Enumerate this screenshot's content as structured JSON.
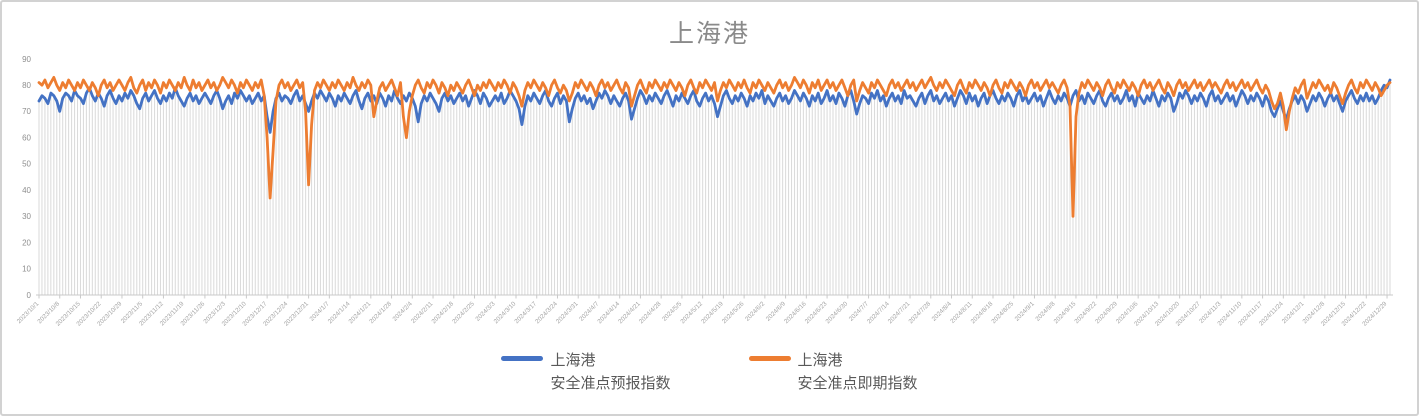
{
  "panel": {
    "title": "上海港"
  },
  "appearance": {
    "series_forecast_color": "#4472C4",
    "series_spot_color": "#ED7D31",
    "drop_line_color": "#dbdbdb",
    "axis_color": "#c9c9c9",
    "y_label_color": "#8e8e8e",
    "x_label_color": "#a6a6a6",
    "title_color": "#8a8a8a"
  },
  "legend": {
    "items": [
      {
        "line1": "上海港",
        "line2": "安全准点预报指数",
        "color": "#4472C4"
      },
      {
        "line1": "上海港",
        "line2": "安全准点即期指数",
        "color": "#ED7D31"
      }
    ]
  },
  "chart_data": {
    "type": "line",
    "title": "上海港",
    "xlabel": "",
    "ylabel": "",
    "ylim": [
      0,
      90
    ],
    "y_ticks": [
      0,
      10,
      20,
      30,
      40,
      50,
      60,
      70,
      80,
      90
    ],
    "grid": false,
    "drop_lines": true,
    "legend_position": "bottom",
    "x_start": "2023/10/1",
    "x_end": "2024/12/30",
    "x_frequency": "daily",
    "x_tick_every_days": 7,
    "x_tick_labels": [
      "2023/10/1",
      "2023/10/8",
      "2023/10/15",
      "2023/10/22",
      "2023/10/29",
      "2023/11/5",
      "2023/11/12",
      "2023/11/19",
      "2023/11/26",
      "2023/12/3",
      "2023/12/10",
      "2023/12/17",
      "2023/12/24",
      "2023/12/31",
      "2024/1/7",
      "2024/1/14",
      "2024/1/21",
      "2024/1/28",
      "2024/2/4",
      "2024/2/11",
      "2024/2/18",
      "2024/2/25",
      "2024/3/3",
      "2024/3/10",
      "2024/3/17",
      "2024/3/24",
      "2024/3/31",
      "2024/4/7",
      "2024/4/14",
      "2024/4/21",
      "2024/4/28",
      "2024/5/5",
      "2024/5/12",
      "2024/5/19",
      "2024/5/26",
      "2024/6/2",
      "2024/6/9",
      "2024/6/16",
      "2024/6/23",
      "2024/6/30",
      "2024/7/7",
      "2024/7/14",
      "2024/7/21",
      "2024/7/28",
      "2024/8/4",
      "2024/8/11",
      "2024/8/18",
      "2024/8/25",
      "2024/9/1",
      "2024/9/8",
      "2024/9/15",
      "2024/9/22",
      "2024/9/29",
      "2024/10/6",
      "2024/10/13",
      "2024/10/20",
      "2024/10/27",
      "2024/11/3",
      "2024/11/10",
      "2024/11/17",
      "2024/11/24",
      "2024/12/1",
      "2024/12/8",
      "2024/12/15",
      "2024/12/22",
      "2024/12/29"
    ],
    "series": [
      {
        "name": "上海港 安全准点预报指数",
        "color": "#4472C4",
        "values": [
          74,
          76,
          75,
          73,
          77,
          76,
          74,
          70,
          75,
          77,
          76,
          74,
          78,
          76,
          75,
          73,
          77,
          79,
          76,
          74,
          77,
          75,
          72,
          76,
          78,
          75,
          73,
          76,
          74,
          77,
          75,
          78,
          76,
          73,
          71,
          75,
          77,
          74,
          76,
          78,
          75,
          73,
          76,
          74,
          77,
          75,
          79,
          76,
          74,
          72,
          75,
          77,
          74,
          76,
          73,
          75,
          77,
          75,
          73,
          76,
          78,
          75,
          71,
          74,
          76,
          73,
          77,
          75,
          78,
          76,
          74,
          76,
          73,
          75,
          77,
          74,
          76,
          68,
          62,
          70,
          75,
          77,
          74,
          76,
          75,
          73,
          76,
          78,
          74,
          76,
          73,
          70,
          74,
          77,
          75,
          78,
          76,
          74,
          77,
          75,
          72,
          76,
          74,
          77,
          75,
          73,
          76,
          78,
          74,
          71,
          75,
          77,
          74,
          76,
          73,
          77,
          75,
          72,
          76,
          74,
          78,
          75,
          73,
          76,
          74,
          77,
          75,
          72,
          66,
          73,
          76,
          74,
          77,
          75,
          73,
          70,
          75,
          77,
          74,
          76,
          73,
          75,
          77,
          74,
          76,
          72,
          75,
          78,
          76,
          73,
          77,
          75,
          72,
          74,
          76,
          74,
          77,
          73,
          75,
          78,
          76,
          74,
          71,
          65,
          72,
          76,
          74,
          77,
          75,
          73,
          76,
          78,
          74,
          72,
          75,
          77,
          73,
          76,
          74,
          66,
          71,
          75,
          77,
          74,
          76,
          73,
          75,
          71,
          74,
          77,
          75,
          78,
          76,
          73,
          76,
          74,
          72,
          75,
          77,
          74,
          67,
          71,
          75,
          78,
          76,
          73,
          76,
          74,
          77,
          75,
          73,
          76,
          78,
          75,
          72,
          76,
          74,
          77,
          75,
          73,
          76,
          78,
          74,
          72,
          75,
          77,
          74,
          76,
          73,
          68,
          72,
          76,
          78,
          75,
          73,
          76,
          74,
          77,
          75,
          72,
          76,
          74,
          77,
          75,
          78,
          73,
          76,
          74,
          72,
          75,
          77,
          74,
          76,
          73,
          75,
          78,
          76,
          74,
          77,
          75,
          72,
          76,
          74,
          77,
          73,
          75,
          78,
          74,
          76,
          73,
          77,
          75,
          72,
          76,
          78,
          74,
          69,
          73,
          76,
          75,
          73,
          77,
          75,
          78,
          74,
          76,
          72,
          75,
          77,
          74,
          76,
          73,
          78,
          75,
          76,
          74,
          72,
          75,
          77,
          73,
          76,
          78,
          74,
          76,
          73,
          75,
          77,
          74,
          76,
          72,
          75,
          78,
          76,
          73,
          77,
          74,
          76,
          72,
          75,
          77,
          73,
          76,
          78,
          75,
          73,
          76,
          74,
          77,
          75,
          72,
          76,
          78,
          74,
          76,
          73,
          75,
          77,
          74,
          76,
          72,
          75,
          78,
          75,
          73,
          76,
          74,
          77,
          75,
          72,
          76,
          78,
          74,
          76,
          73,
          77,
          75,
          73,
          76,
          78,
          74,
          72,
          75,
          77,
          74,
          76,
          73,
          75,
          78,
          74,
          76,
          72,
          77,
          75,
          73,
          76,
          74,
          78,
          75,
          72,
          76,
          74,
          77,
          75,
          70,
          73,
          77,
          75,
          78,
          76,
          73,
          76,
          74,
          77,
          75,
          72,
          76,
          78,
          74,
          76,
          73,
          75,
          77,
          74,
          76,
          72,
          75,
          78,
          76,
          73,
          76,
          74,
          77,
          75,
          72,
          76,
          74,
          70,
          68,
          71,
          74,
          70,
          67,
          71,
          74,
          76,
          73,
          76,
          74,
          70,
          73,
          76,
          74,
          77,
          75,
          72,
          75,
          77,
          74,
          76,
          73,
          70,
          74,
          76,
          78,
          75,
          73,
          76,
          74,
          77,
          74,
          76,
          73,
          75,
          78,
          80,
          79,
          82
        ]
      },
      {
        "name": "上海港 安全准点即期指数",
        "color": "#ED7D31",
        "values": [
          81,
          80,
          82,
          79,
          81,
          83,
          80,
          78,
          81,
          79,
          82,
          80,
          78,
          81,
          79,
          82,
          80,
          78,
          81,
          79,
          76,
          80,
          82,
          79,
          81,
          78,
          80,
          82,
          80,
          78,
          81,
          83,
          79,
          77,
          80,
          82,
          78,
          81,
          79,
          82,
          80,
          77,
          81,
          79,
          82,
          80,
          78,
          81,
          79,
          83,
          80,
          78,
          82,
          79,
          81,
          78,
          80,
          82,
          79,
          81,
          78,
          80,
          83,
          81,
          79,
          82,
          80,
          77,
          81,
          79,
          82,
          80,
          78,
          81,
          79,
          82,
          76,
          60,
          37,
          55,
          74,
          80,
          82,
          79,
          81,
          78,
          80,
          82,
          79,
          81,
          70,
          42,
          65,
          78,
          81,
          79,
          82,
          80,
          78,
          81,
          79,
          82,
          80,
          78,
          81,
          79,
          83,
          80,
          78,
          81,
          79,
          82,
          80,
          68,
          74,
          79,
          81,
          78,
          80,
          82,
          79,
          76,
          81,
          68,
          60,
          70,
          76,
          80,
          82,
          79,
          77,
          81,
          79,
          82,
          80,
          77,
          81,
          79,
          76,
          80,
          78,
          81,
          79,
          77,
          80,
          82,
          79,
          76,
          80,
          78,
          81,
          79,
          82,
          80,
          78,
          81,
          79,
          82,
          80,
          77,
          81,
          79,
          76,
          72,
          78,
          81,
          79,
          82,
          80,
          78,
          81,
          79,
          76,
          80,
          82,
          79,
          77,
          80,
          78,
          74,
          77,
          81,
          79,
          82,
          80,
          78,
          81,
          79,
          76,
          80,
          82,
          79,
          81,
          78,
          80,
          82,
          79,
          77,
          81,
          79,
          72,
          76,
          80,
          82,
          79,
          77,
          81,
          79,
          82,
          80,
          78,
          81,
          79,
          82,
          80,
          78,
          81,
          79,
          76,
          80,
          82,
          79,
          77,
          81,
          79,
          82,
          80,
          78,
          81,
          74,
          78,
          81,
          79,
          82,
          80,
          78,
          81,
          79,
          82,
          79,
          77,
          81,
          79,
          82,
          80,
          78,
          81,
          79,
          77,
          80,
          82,
          79,
          81,
          78,
          80,
          83,
          81,
          79,
          82,
          80,
          77,
          81,
          79,
          82,
          78,
          80,
          82,
          79,
          81,
          78,
          80,
          82,
          79,
          76,
          80,
          82,
          74,
          78,
          81,
          79,
          77,
          81,
          79,
          82,
          80,
          78,
          76,
          80,
          82,
          79,
          81,
          78,
          80,
          82,
          79,
          81,
          78,
          80,
          82,
          79,
          81,
          83,
          80,
          78,
          81,
          79,
          82,
          80,
          78,
          76,
          80,
          82,
          79,
          77,
          81,
          79,
          82,
          80,
          78,
          81,
          79,
          76,
          80,
          82,
          79,
          77,
          81,
          79,
          82,
          80,
          78,
          81,
          79,
          76,
          80,
          82,
          79,
          81,
          78,
          80,
          82,
          79,
          81,
          79,
          77,
          80,
          82,
          79,
          72,
          30,
          68,
          77,
          81,
          79,
          82,
          80,
          78,
          81,
          79,
          76,
          80,
          82,
          79,
          77,
          81,
          79,
          82,
          80,
          78,
          81,
          79,
          76,
          80,
          82,
          79,
          81,
          78,
          80,
          82,
          79,
          77,
          81,
          79,
          76,
          80,
          82,
          79,
          81,
          78,
          80,
          82,
          79,
          81,
          78,
          80,
          82,
          79,
          81,
          79,
          77,
          80,
          82,
          79,
          81,
          78,
          80,
          82,
          79,
          81,
          78,
          80,
          82,
          79,
          77,
          80,
          78,
          74,
          71,
          73,
          77,
          72,
          63,
          70,
          75,
          79,
          77,
          80,
          82,
          75,
          78,
          81,
          79,
          82,
          80,
          78,
          80,
          77,
          81,
          79,
          76,
          73,
          77,
          80,
          82,
          79,
          77,
          81,
          79,
          82,
          80,
          78,
          81,
          79,
          76,
          78,
          80,
          81
        ]
      }
    ]
  }
}
